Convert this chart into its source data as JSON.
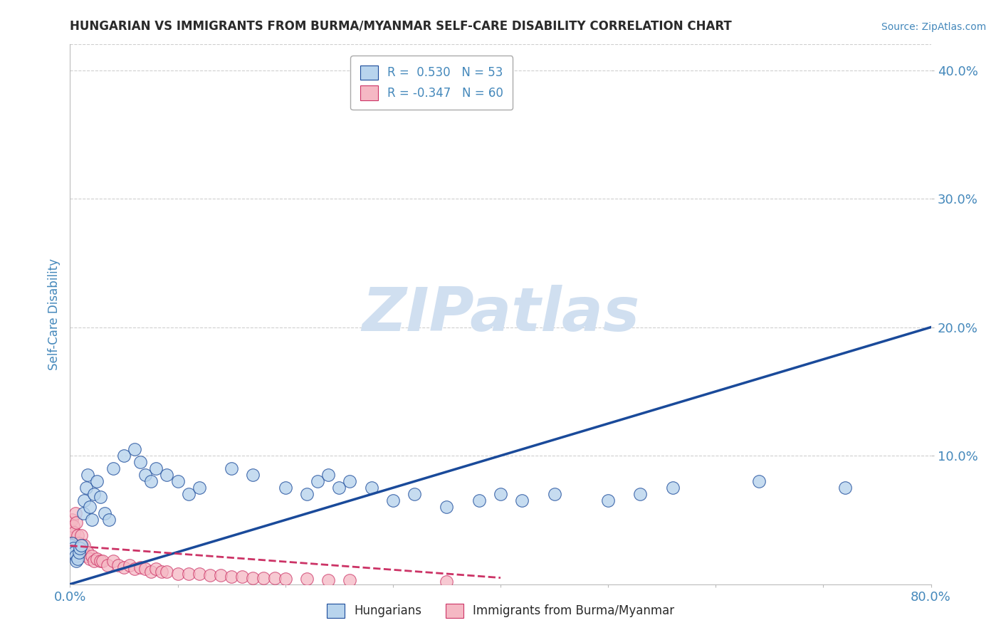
{
  "title": "HUNGARIAN VS IMMIGRANTS FROM BURMA/MYANMAR SELF-CARE DISABILITY CORRELATION CHART",
  "source": "Source: ZipAtlas.com",
  "ylabel": "Self-Care Disability",
  "xlim": [
    0.0,
    0.8
  ],
  "ylim": [
    0.0,
    0.42
  ],
  "xticks": [
    0.0,
    0.1,
    0.2,
    0.3,
    0.4,
    0.5,
    0.6,
    0.7,
    0.8
  ],
  "xticklabels": [
    "0.0%",
    "",
    "",
    "",
    "",
    "",
    "",
    "",
    "80.0%"
  ],
  "ytick_positions": [
    0.1,
    0.2,
    0.3,
    0.4
  ],
  "ytick_labels": [
    "10.0%",
    "20.0%",
    "30.0%",
    "40.0%"
  ],
  "hungarian_R": 0.53,
  "hungarian_N": 53,
  "burma_R": -0.347,
  "burma_N": 60,
  "hungarian_color": "#b8d4ed",
  "burma_color": "#f5b8c4",
  "hungarian_line_color": "#1a4a9a",
  "burma_line_color": "#cc3366",
  "watermark": "ZIPatlas",
  "watermark_color": "#d0dff0",
  "background_color": "#ffffff",
  "grid_color": "#bbbbbb",
  "title_color": "#2a2a2a",
  "axis_label_color": "#4488bb",
  "tick_label_color": "#4488bb",
  "hungarian_x": [
    0.001,
    0.002,
    0.003,
    0.004,
    0.005,
    0.006,
    0.007,
    0.008,
    0.009,
    0.01,
    0.012,
    0.013,
    0.015,
    0.016,
    0.018,
    0.02,
    0.022,
    0.025,
    0.028,
    0.032,
    0.036,
    0.04,
    0.05,
    0.06,
    0.065,
    0.07,
    0.075,
    0.08,
    0.09,
    0.1,
    0.11,
    0.12,
    0.15,
    0.17,
    0.2,
    0.22,
    0.23,
    0.24,
    0.25,
    0.26,
    0.28,
    0.3,
    0.32,
    0.35,
    0.38,
    0.4,
    0.42,
    0.45,
    0.5,
    0.53,
    0.56,
    0.64,
    0.72
  ],
  "hungarian_y": [
    0.03,
    0.032,
    0.028,
    0.025,
    0.022,
    0.018,
    0.02,
    0.025,
    0.028,
    0.03,
    0.055,
    0.065,
    0.075,
    0.085,
    0.06,
    0.05,
    0.07,
    0.08,
    0.068,
    0.055,
    0.05,
    0.09,
    0.1,
    0.105,
    0.095,
    0.085,
    0.08,
    0.09,
    0.085,
    0.08,
    0.07,
    0.075,
    0.09,
    0.085,
    0.075,
    0.07,
    0.08,
    0.085,
    0.075,
    0.08,
    0.075,
    0.065,
    0.07,
    0.06,
    0.065,
    0.07,
    0.065,
    0.07,
    0.065,
    0.07,
    0.075,
    0.08,
    0.075
  ],
  "burma_x": [
    0.001,
    0.001,
    0.001,
    0.002,
    0.002,
    0.002,
    0.003,
    0.003,
    0.003,
    0.004,
    0.004,
    0.005,
    0.005,
    0.006,
    0.006,
    0.007,
    0.007,
    0.008,
    0.008,
    0.009,
    0.01,
    0.01,
    0.011,
    0.012,
    0.013,
    0.015,
    0.016,
    0.018,
    0.02,
    0.022,
    0.025,
    0.028,
    0.03,
    0.035,
    0.04,
    0.045,
    0.05,
    0.055,
    0.06,
    0.065,
    0.07,
    0.075,
    0.08,
    0.085,
    0.09,
    0.1,
    0.11,
    0.12,
    0.13,
    0.14,
    0.15,
    0.16,
    0.17,
    0.18,
    0.19,
    0.2,
    0.22,
    0.24,
    0.26,
    0.35
  ],
  "burma_y": [
    0.035,
    0.042,
    0.028,
    0.05,
    0.038,
    0.03,
    0.045,
    0.032,
    0.025,
    0.04,
    0.028,
    0.055,
    0.032,
    0.048,
    0.025,
    0.038,
    0.022,
    0.032,
    0.025,
    0.03,
    0.038,
    0.025,
    0.03,
    0.025,
    0.03,
    0.022,
    0.025,
    0.02,
    0.022,
    0.018,
    0.02,
    0.018,
    0.018,
    0.015,
    0.018,
    0.015,
    0.013,
    0.015,
    0.012,
    0.013,
    0.012,
    0.01,
    0.012,
    0.01,
    0.01,
    0.008,
    0.008,
    0.008,
    0.007,
    0.007,
    0.006,
    0.006,
    0.005,
    0.005,
    0.005,
    0.004,
    0.004,
    0.003,
    0.003,
    0.002
  ],
  "h_trendline_x0": 0.0,
  "h_trendline_y0": 0.0,
  "h_trendline_x1": 0.8,
  "h_trendline_y1": 0.2,
  "b_trendline_x0": 0.0,
  "b_trendline_y0": 0.03,
  "b_trendline_x1": 0.4,
  "b_trendline_y1": 0.005
}
